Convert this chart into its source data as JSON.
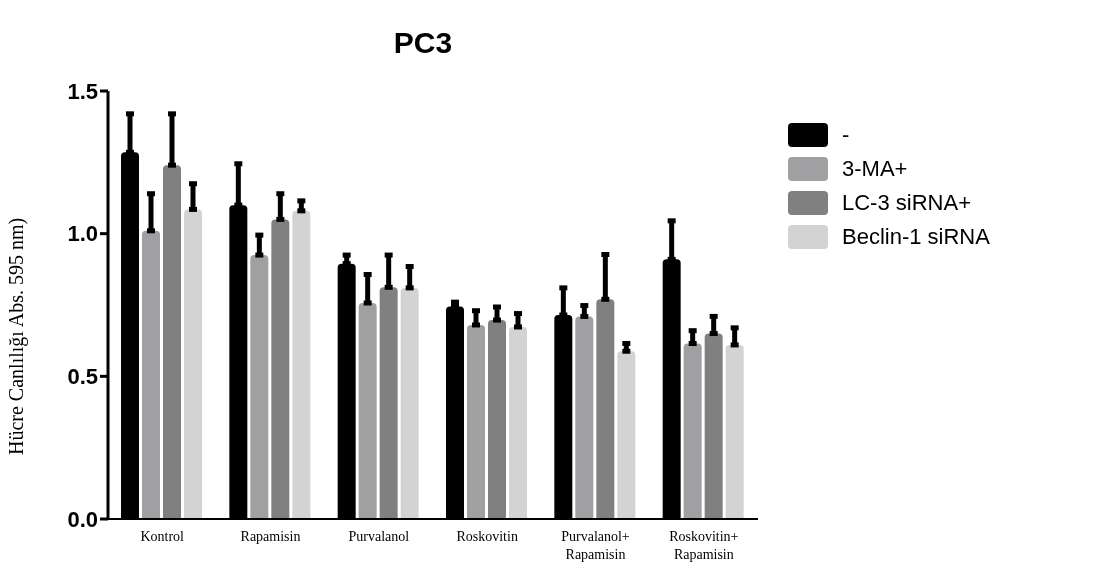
{
  "chart_data": {
    "type": "bar",
    "title": "PC3",
    "ylabel": "Hücre Canlılığı Abs. 595 nm)",
    "categories": [
      "Kontrol",
      "Rapamisin",
      "Purvalanol",
      "Roskovitin",
      "Purvalanol+\nRapamisin",
      "Roskovitin+\nRapamisin"
    ],
    "series": [
      {
        "name": "-",
        "color": "#000000",
        "values": [
          1.285,
          1.1,
          0.895,
          0.745,
          0.715,
          0.91
        ],
        "errors": [
          [
            1.285,
            1.42
          ],
          [
            1.1,
            1.245
          ],
          [
            0.895,
            0.925
          ],
          [
            0.745,
            0.76
          ],
          [
            0.715,
            0.81
          ],
          [
            0.91,
            1.045
          ]
        ]
      },
      {
        "name": "3-MA+",
        "color": "#a0a0a2",
        "values": [
          1.01,
          0.925,
          0.757,
          0.68,
          0.71,
          0.615
        ],
        "errors": [
          [
            1.01,
            1.14
          ],
          [
            0.925,
            0.995
          ],
          [
            0.757,
            0.857
          ],
          [
            0.68,
            0.73
          ],
          [
            0.71,
            0.748
          ],
          [
            0.615,
            0.66
          ]
        ]
      },
      {
        "name": "LC-3 siRNA+",
        "color": "#808080",
        "values": [
          1.24,
          1.05,
          0.812,
          0.697,
          0.77,
          0.65
        ],
        "errors": [
          [
            1.24,
            1.42
          ],
          [
            1.05,
            1.14
          ],
          [
            0.812,
            0.925
          ],
          [
            0.697,
            0.743
          ],
          [
            0.77,
            0.927
          ],
          [
            0.65,
            0.71
          ]
        ]
      },
      {
        "name": "Beclin-1 siRNA",
        "color": "#d3d3d3",
        "values": [
          1.085,
          1.08,
          0.81,
          0.673,
          0.588,
          0.61
        ],
        "errors": [
          [
            1.085,
            1.175
          ],
          [
            1.08,
            1.115
          ],
          [
            0.81,
            0.885
          ],
          [
            0.673,
            0.72
          ],
          [
            0.588,
            0.615
          ],
          [
            0.61,
            0.67
          ]
        ]
      }
    ],
    "ylim": [
      0,
      1.5
    ],
    "yticks": [
      {
        "value": 0,
        "label": "0.0"
      },
      {
        "value": 0.5,
        "label": "0.5"
      },
      {
        "value": 1,
        "label": "1.0"
      },
      {
        "value": 1.5,
        "label": "1.5"
      }
    ],
    "grid": false,
    "legend": "top right"
  }
}
